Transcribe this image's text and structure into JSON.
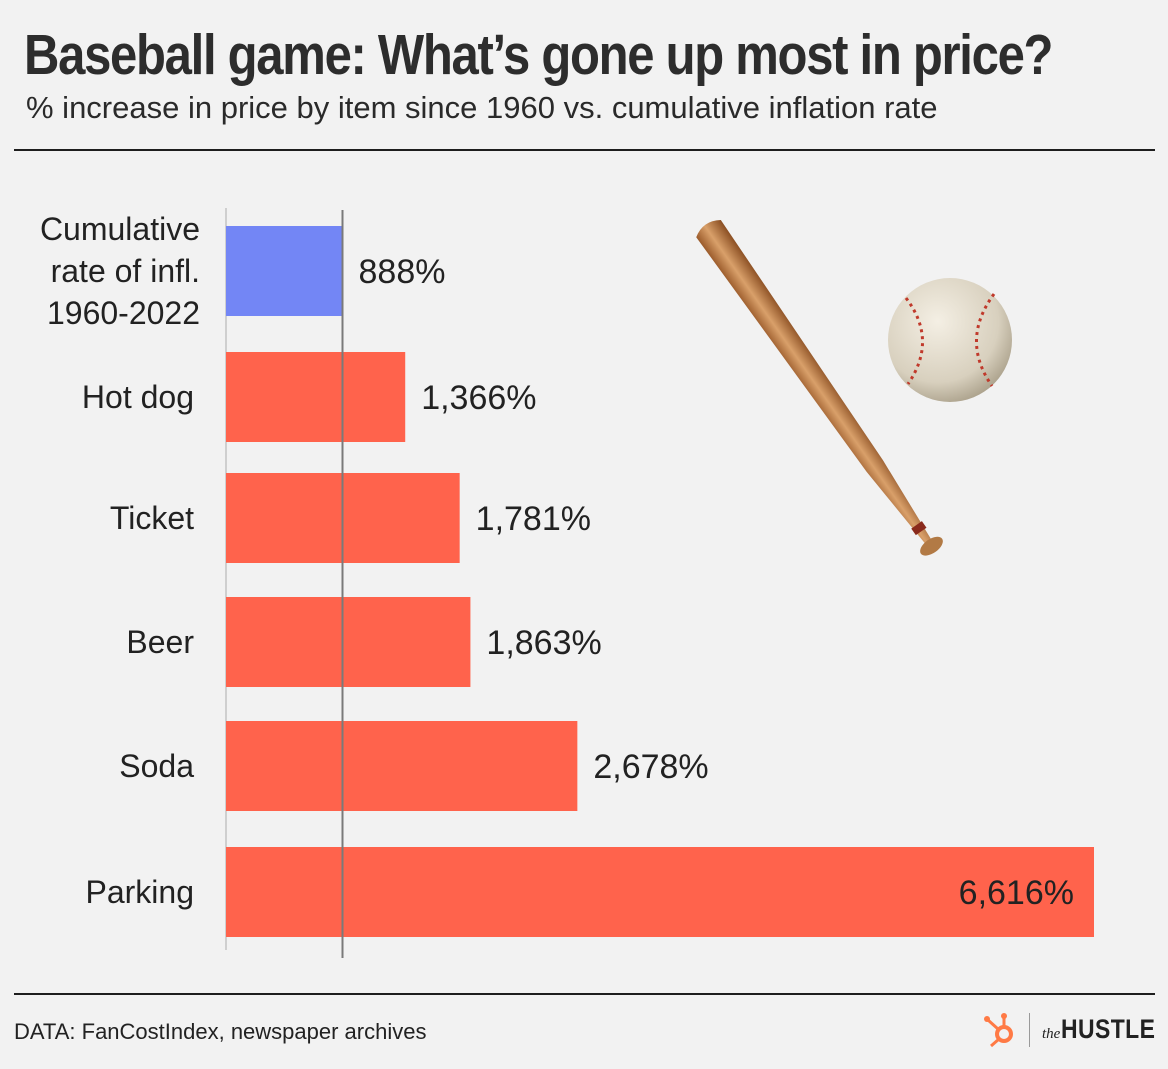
{
  "header": {
    "title": "Baseball game: What’s gone up most in price?",
    "subtitle": "% increase in price by item since 1960 vs. cumulative inflation rate"
  },
  "chart_data": {
    "type": "bar",
    "orientation": "horizontal",
    "categories": [
      [
        "Cumulative",
        "rate of infl.",
        "1960-2022"
      ],
      [
        "Hot dog"
      ],
      [
        "Ticket"
      ],
      [
        "Beer"
      ],
      [
        "Soda"
      ],
      [
        "Parking"
      ]
    ],
    "values": [
      888,
      1366,
      1781,
      1863,
      2678,
      6616
    ],
    "value_labels": [
      "888%",
      "1,366%",
      "1,781%",
      "1,863%",
      "2,678%",
      "6,616%"
    ],
    "reference_line": 888,
    "colors": {
      "inflation": "#7386f5",
      "items": "#ff634c",
      "reference_line": "#7a7a7a"
    },
    "xlim": [
      0,
      6616
    ],
    "legend": "none",
    "grid": false
  },
  "footer": {
    "source": "DATA: FanCostIndex, newspaper archives",
    "logo_small": "the",
    "logo_main": "HUSTLE",
    "logo_color": "#ff7a45"
  },
  "decorations": {
    "icons": [
      "baseball-bat-icon",
      "baseball-icon",
      "hubspot-sprocket-icon"
    ]
  }
}
